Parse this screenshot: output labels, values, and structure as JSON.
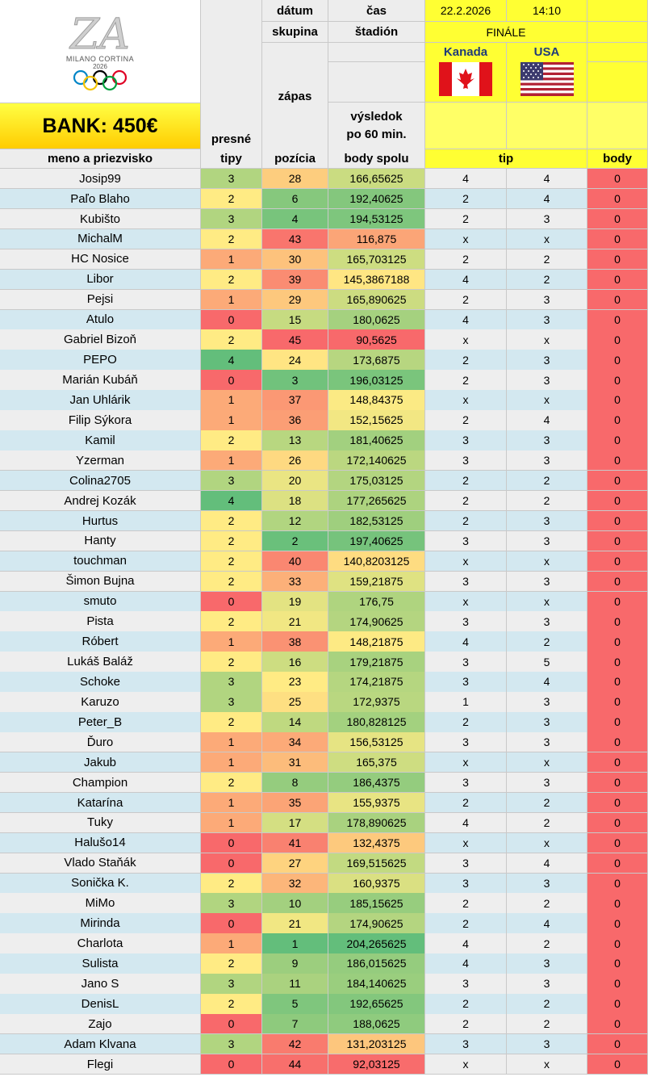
{
  "logo": {
    "brand_text": "MILANO CORTINA",
    "year": "2026",
    "emblem": "olympic-rings-logo"
  },
  "bank_label": "BANK: 450€",
  "match": {
    "datum_label": "dátum",
    "cas_label": "čas",
    "date": "22.2.2026",
    "time": "14:10",
    "skupina_label": "skupina",
    "stadion_label": "štadión",
    "stage": "FINÁLE",
    "zapas_label": "zápas",
    "vysledok_line1": "výsledok",
    "vysledok_line2": "po 60 min.",
    "team1": "Kanada",
    "team2": "USA"
  },
  "headers": {
    "presne_line1": "presné",
    "presne_line2": "tipy",
    "name": "meno a priezvisko",
    "pozicia": "pozícia",
    "body_spolu": "body spolu",
    "tip": "tip",
    "body": "body"
  },
  "rows": [
    {
      "name": "Josip99",
      "presne": "3",
      "pozicia": "28",
      "body_spolu": "166,65625",
      "tip1": "4",
      "tip2": "4",
      "body": "0"
    },
    {
      "name": "Paľo Blaho",
      "presne": "2",
      "pozicia": "6",
      "body_spolu": "192,40625",
      "tip1": "2",
      "tip2": "4",
      "body": "0"
    },
    {
      "name": "Kubišto",
      "presne": "3",
      "pozicia": "4",
      "body_spolu": "194,53125",
      "tip1": "2",
      "tip2": "3",
      "body": "0"
    },
    {
      "name": "MichalM",
      "presne": "2",
      "pozicia": "43",
      "body_spolu": "116,875",
      "tip1": "x",
      "tip2": "x",
      "body": "0"
    },
    {
      "name": "HC Nosice",
      "presne": "1",
      "pozicia": "30",
      "body_spolu": "165,703125",
      "tip1": "2",
      "tip2": "2",
      "body": "0"
    },
    {
      "name": "Libor",
      "presne": "2",
      "pozicia": "39",
      "body_spolu": "145,3867188",
      "tip1": "4",
      "tip2": "2",
      "body": "0"
    },
    {
      "name": "Pejsi",
      "presne": "1",
      "pozicia": "29",
      "body_spolu": "165,890625",
      "tip1": "2",
      "tip2": "3",
      "body": "0"
    },
    {
      "name": "Atulo",
      "presne": "0",
      "pozicia": "15",
      "body_spolu": "180,0625",
      "tip1": "4",
      "tip2": "3",
      "body": "0"
    },
    {
      "name": "Gabriel Bizoň",
      "presne": "2",
      "pozicia": "45",
      "body_spolu": "90,5625",
      "tip1": "x",
      "tip2": "x",
      "body": "0"
    },
    {
      "name": "PEPO",
      "presne": "4",
      "pozicia": "24",
      "body_spolu": "173,6875",
      "tip1": "2",
      "tip2": "3",
      "body": "0"
    },
    {
      "name": "Marián Kubáň",
      "presne": "0",
      "pozicia": "3",
      "body_spolu": "196,03125",
      "tip1": "2",
      "tip2": "3",
      "body": "0"
    },
    {
      "name": "Jan Uhlárik",
      "presne": "1",
      "pozicia": "37",
      "body_spolu": "148,84375",
      "tip1": "x",
      "tip2": "x",
      "body": "0"
    },
    {
      "name": "Filip Sýkora",
      "presne": "1",
      "pozicia": "36",
      "body_spolu": "152,15625",
      "tip1": "2",
      "tip2": "4",
      "body": "0"
    },
    {
      "name": "Kamil",
      "presne": "2",
      "pozicia": "13",
      "body_spolu": "181,40625",
      "tip1": "3",
      "tip2": "3",
      "body": "0"
    },
    {
      "name": "Yzerman",
      "presne": "1",
      "pozicia": "26",
      "body_spolu": "172,140625",
      "tip1": "3",
      "tip2": "3",
      "body": "0"
    },
    {
      "name": "Colina2705",
      "presne": "3",
      "pozicia": "20",
      "body_spolu": "175,03125",
      "tip1": "2",
      "tip2": "2",
      "body": "0"
    },
    {
      "name": "Andrej Kozák",
      "presne": "4",
      "pozicia": "18",
      "body_spolu": "177,265625",
      "tip1": "2",
      "tip2": "2",
      "body": "0"
    },
    {
      "name": "Hurtus",
      "presne": "2",
      "pozicia": "12",
      "body_spolu": "182,53125",
      "tip1": "2",
      "tip2": "3",
      "body": "0"
    },
    {
      "name": "Hanty",
      "presne": "2",
      "pozicia": "2",
      "body_spolu": "197,40625",
      "tip1": "3",
      "tip2": "3",
      "body": "0"
    },
    {
      "name": "touchman",
      "presne": "2",
      "pozicia": "40",
      "body_spolu": "140,8203125",
      "tip1": "x",
      "tip2": "x",
      "body": "0"
    },
    {
      "name": "Šimon Bujna",
      "presne": "2",
      "pozicia": "33",
      "body_spolu": "159,21875",
      "tip1": "3",
      "tip2": "3",
      "body": "0"
    },
    {
      "name": "smuto",
      "presne": "0",
      "pozicia": "19",
      "body_spolu": "176,75",
      "tip1": "x",
      "tip2": "x",
      "body": "0"
    },
    {
      "name": "Pista",
      "presne": "2",
      "pozicia": "21",
      "body_spolu": "174,90625",
      "tip1": "3",
      "tip2": "3",
      "body": "0"
    },
    {
      "name": "Róbert",
      "presne": "1",
      "pozicia": "38",
      "body_spolu": "148,21875",
      "tip1": "4",
      "tip2": "2",
      "body": "0"
    },
    {
      "name": "Lukáš Baláž",
      "presne": "2",
      "pozicia": "16",
      "body_spolu": "179,21875",
      "tip1": "3",
      "tip2": "5",
      "body": "0"
    },
    {
      "name": "Schoke",
      "presne": "3",
      "pozicia": "23",
      "body_spolu": "174,21875",
      "tip1": "3",
      "tip2": "4",
      "body": "0"
    },
    {
      "name": "Karuzo",
      "presne": "3",
      "pozicia": "25",
      "body_spolu": "172,9375",
      "tip1": "1",
      "tip2": "3",
      "body": "0"
    },
    {
      "name": "Peter_B",
      "presne": "2",
      "pozicia": "14",
      "body_spolu": "180,828125",
      "tip1": "2",
      "tip2": "3",
      "body": "0"
    },
    {
      "name": "Ďuro",
      "presne": "1",
      "pozicia": "34",
      "body_spolu": "156,53125",
      "tip1": "3",
      "tip2": "3",
      "body": "0"
    },
    {
      "name": "Jakub",
      "presne": "1",
      "pozicia": "31",
      "body_spolu": "165,375",
      "tip1": "x",
      "tip2": "x",
      "body": "0"
    },
    {
      "name": "Champion",
      "presne": "2",
      "pozicia": "8",
      "body_spolu": "186,4375",
      "tip1": "3",
      "tip2": "3",
      "body": "0"
    },
    {
      "name": "Katarína",
      "presne": "1",
      "pozicia": "35",
      "body_spolu": "155,9375",
      "tip1": "2",
      "tip2": "2",
      "body": "0"
    },
    {
      "name": "Tuky",
      "presne": "1",
      "pozicia": "17",
      "body_spolu": "178,890625",
      "tip1": "4",
      "tip2": "2",
      "body": "0"
    },
    {
      "name": "Halušo14",
      "presne": "0",
      "pozicia": "41",
      "body_spolu": "132,4375",
      "tip1": "x",
      "tip2": "x",
      "body": "0"
    },
    {
      "name": "Vlado Staňák",
      "presne": "0",
      "pozicia": "27",
      "body_spolu": "169,515625",
      "tip1": "3",
      "tip2": "4",
      "body": "0"
    },
    {
      "name": "Sonička K.",
      "presne": "2",
      "pozicia": "32",
      "body_spolu": "160,9375",
      "tip1": "3",
      "tip2": "3",
      "body": "0"
    },
    {
      "name": "MiMo",
      "presne": "3",
      "pozicia": "10",
      "body_spolu": "185,15625",
      "tip1": "2",
      "tip2": "2",
      "body": "0"
    },
    {
      "name": "Mirinda",
      "presne": "0",
      "pozicia": "21",
      "body_spolu": "174,90625",
      "tip1": "2",
      "tip2": "4",
      "body": "0"
    },
    {
      "name": "Charlota",
      "presne": "1",
      "pozicia": "1",
      "body_spolu": "204,265625",
      "tip1": "4",
      "tip2": "2",
      "body": "0"
    },
    {
      "name": "Sulista",
      "presne": "2",
      "pozicia": "9",
      "body_spolu": "186,015625",
      "tip1": "4",
      "tip2": "3",
      "body": "0"
    },
    {
      "name": "Jano S",
      "presne": "3",
      "pozicia": "11",
      "body_spolu": "184,140625",
      "tip1": "3",
      "tip2": "3",
      "body": "0"
    },
    {
      "name": "DenisL",
      "presne": "2",
      "pozicia": "5",
      "body_spolu": "192,65625",
      "tip1": "2",
      "tip2": "2",
      "body": "0"
    },
    {
      "name": "Zajo",
      "presne": "0",
      "pozicia": "7",
      "body_spolu": "188,0625",
      "tip1": "2",
      "tip2": "2",
      "body": "0"
    },
    {
      "name": "Adam Klvana",
      "presne": "3",
      "pozicia": "42",
      "body_spolu": "131,203125",
      "tip1": "3",
      "tip2": "3",
      "body": "0"
    },
    {
      "name": "Flegi",
      "presne": "0",
      "pozicia": "44",
      "body_spolu": "92,03125",
      "tip1": "x",
      "tip2": "x",
      "body": "0"
    }
  ],
  "colors": {
    "header_yellow": "#ffff33",
    "row_light": "#eeeeee",
    "row_blue": "#d3e8f0",
    "body_red": "#f8696b",
    "scale_green": "#63be7b",
    "scale_yellow": "#ffeb84",
    "scale_red": "#f8696b"
  }
}
